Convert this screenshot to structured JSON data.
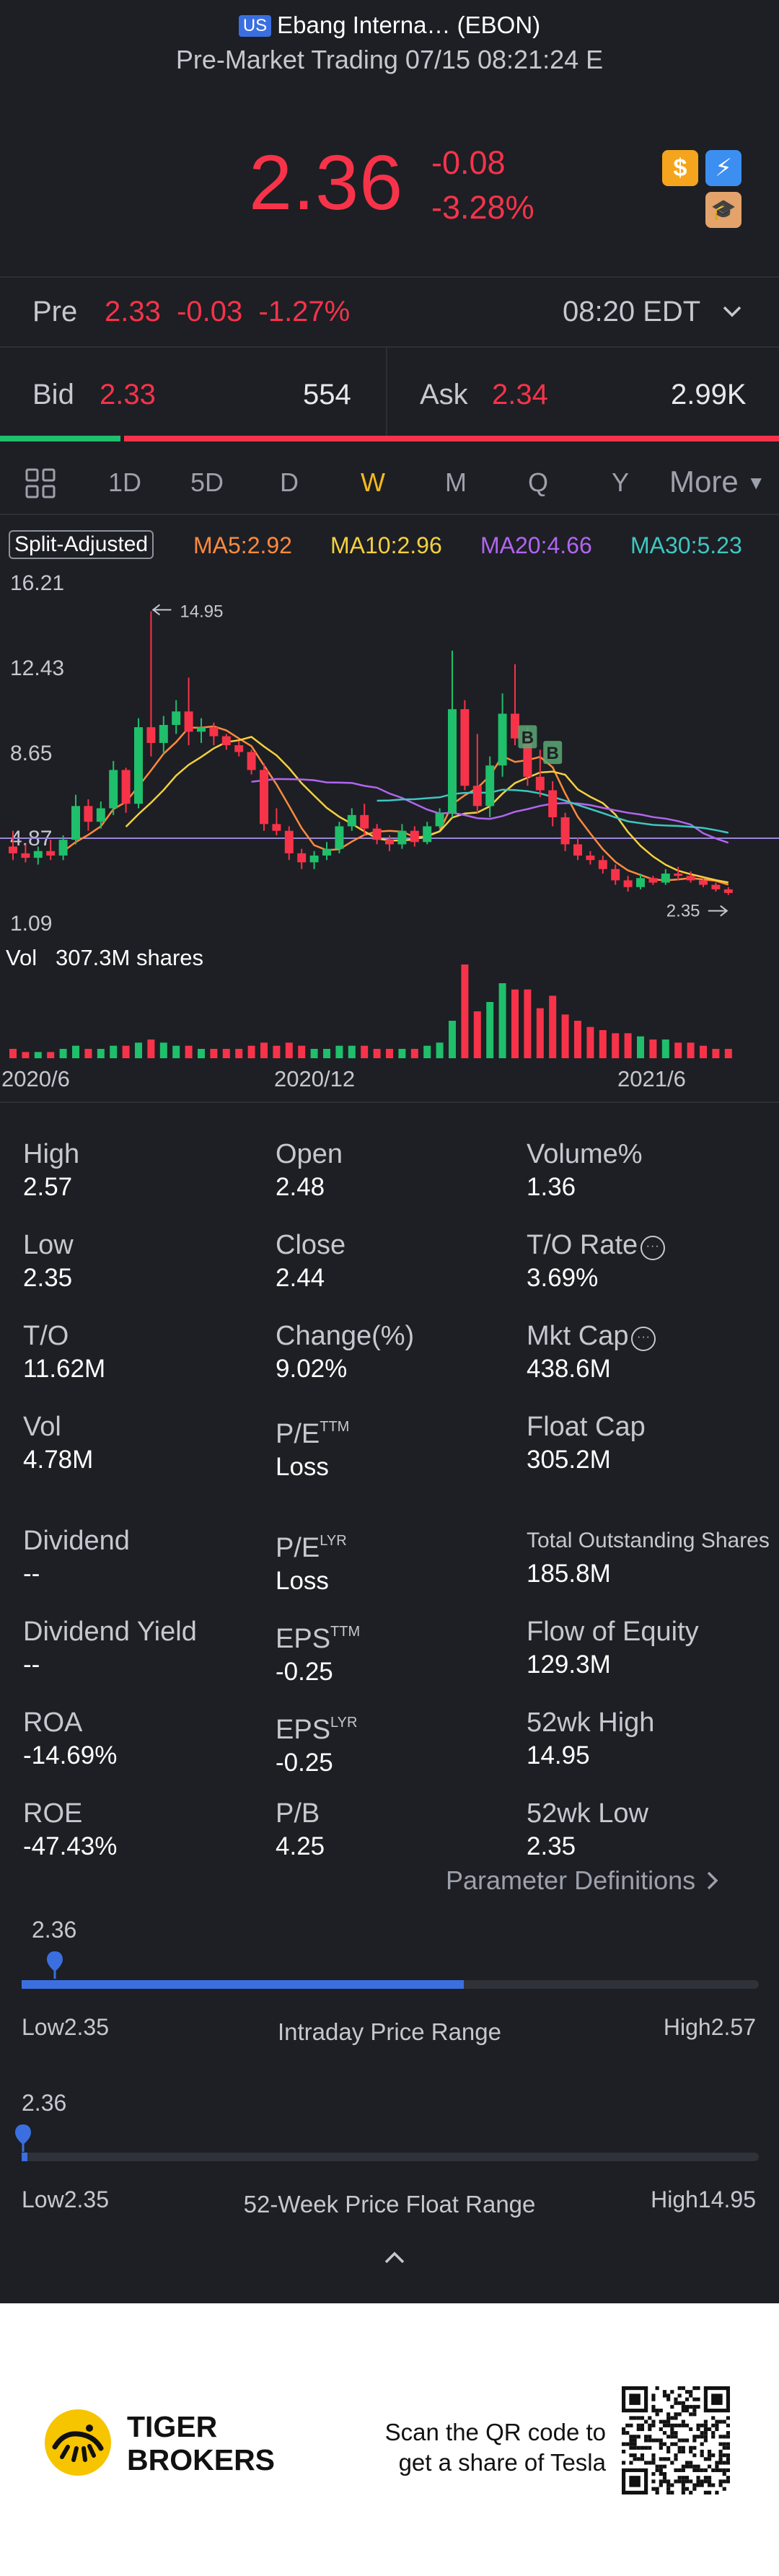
{
  "header": {
    "market_badge": "US",
    "title": "Ebang Interna… (EBON)",
    "subtitle": "Pre-Market Trading 07/15 08:21:24 E"
  },
  "quote": {
    "price": "2.36",
    "change": "-0.08",
    "change_pct": "-3.28%",
    "icons": [
      "dollar-icon",
      "flash-icon",
      "education-icon"
    ]
  },
  "premarket": {
    "label": "Pre",
    "price": "2.33",
    "change": "-0.03",
    "change_pct": "-1.27%",
    "time": "08:20 EDT"
  },
  "orderbook": {
    "bid_label": "Bid",
    "bid_price": "2.33",
    "bid_size": "554",
    "ask_label": "Ask",
    "ask_price": "2.34",
    "ask_size": "2.99K",
    "bid_ratio": 0.155
  },
  "tabs": [
    {
      "label": "1D",
      "active": false
    },
    {
      "label": "5D",
      "active": false
    },
    {
      "label": "D",
      "active": false
    },
    {
      "label": "W",
      "active": true
    },
    {
      "label": "M",
      "active": false
    },
    {
      "label": "Q",
      "active": false
    },
    {
      "label": "Y",
      "active": false
    }
  ],
  "tab_more": "More",
  "ma": {
    "split_label": "Split-Adjusted",
    "ma5": "MA5:2.92",
    "ma10": "MA10:2.96",
    "ma20": "MA20:4.66",
    "ma30": "MA30:5.23",
    "colors": {
      "ma5": "#ff8a3d",
      "ma10": "#f4d03f",
      "ma20": "#b265f0",
      "ma30": "#3fc6c1"
    }
  },
  "chart_data": {
    "type": "candlestick",
    "interval": "weekly",
    "y_ticks": [
      "16.21",
      "12.43",
      "8.65",
      "4.87",
      "1.09"
    ],
    "ylim": [
      1.09,
      16.21
    ],
    "x_ticks": [
      "2020/6",
      "2020/12",
      "2021/6"
    ],
    "max_label": "14.95",
    "min_label": "2.35",
    "reference_line": 4.87,
    "candles": [
      {
        "o": 4.5,
        "h": 5.2,
        "l": 3.9,
        "c": 4.2
      },
      {
        "o": 4.2,
        "h": 4.6,
        "l": 3.8,
        "c": 4.0
      },
      {
        "o": 4.0,
        "h": 4.5,
        "l": 3.7,
        "c": 4.3
      },
      {
        "o": 4.3,
        "h": 4.8,
        "l": 3.9,
        "c": 4.1
      },
      {
        "o": 4.1,
        "h": 5.0,
        "l": 3.9,
        "c": 4.8
      },
      {
        "o": 4.8,
        "h": 6.8,
        "l": 4.6,
        "c": 6.3
      },
      {
        "o": 6.3,
        "h": 6.6,
        "l": 5.2,
        "c": 5.6
      },
      {
        "o": 5.6,
        "h": 6.5,
        "l": 5.3,
        "c": 6.2
      },
      {
        "o": 6.2,
        "h": 8.3,
        "l": 5.9,
        "c": 7.9
      },
      {
        "o": 7.9,
        "h": 8.0,
        "l": 6.0,
        "c": 6.4
      },
      {
        "o": 6.4,
        "h": 10.2,
        "l": 6.2,
        "c": 9.8
      },
      {
        "o": 9.8,
        "h": 14.95,
        "l": 8.5,
        "c": 9.1
      },
      {
        "o": 9.1,
        "h": 10.3,
        "l": 8.6,
        "c": 9.9
      },
      {
        "o": 9.9,
        "h": 11.0,
        "l": 9.5,
        "c": 10.5
      },
      {
        "o": 10.5,
        "h": 12.0,
        "l": 9.0,
        "c": 9.6
      },
      {
        "o": 9.6,
        "h": 10.2,
        "l": 9.1,
        "c": 9.8
      },
      {
        "o": 9.8,
        "h": 10.0,
        "l": 9.0,
        "c": 9.4
      },
      {
        "o": 9.4,
        "h": 9.5,
        "l": 8.8,
        "c": 9.0
      },
      {
        "o": 9.0,
        "h": 9.2,
        "l": 8.5,
        "c": 8.7
      },
      {
        "o": 8.7,
        "h": 8.8,
        "l": 7.7,
        "c": 7.9
      },
      {
        "o": 7.9,
        "h": 8.2,
        "l": 5.2,
        "c": 5.5
      },
      {
        "o": 5.5,
        "h": 6.2,
        "l": 5.0,
        "c": 5.2
      },
      {
        "o": 5.2,
        "h": 5.4,
        "l": 3.9,
        "c": 4.2
      },
      {
        "o": 4.2,
        "h": 4.4,
        "l": 3.5,
        "c": 3.8
      },
      {
        "o": 3.8,
        "h": 4.3,
        "l": 3.5,
        "c": 4.1
      },
      {
        "o": 4.1,
        "h": 4.7,
        "l": 3.9,
        "c": 4.4
      },
      {
        "o": 4.4,
        "h": 5.6,
        "l": 4.2,
        "c": 5.4
      },
      {
        "o": 5.4,
        "h": 6.2,
        "l": 5.2,
        "c": 5.9
      },
      {
        "o": 5.9,
        "h": 6.4,
        "l": 5.0,
        "c": 5.3
      },
      {
        "o": 5.3,
        "h": 5.5,
        "l": 4.6,
        "c": 4.8
      },
      {
        "o": 4.8,
        "h": 5.0,
        "l": 4.3,
        "c": 4.6
      },
      {
        "o": 4.6,
        "h": 5.5,
        "l": 4.4,
        "c": 5.2
      },
      {
        "o": 5.2,
        "h": 5.4,
        "l": 4.5,
        "c": 4.7
      },
      {
        "o": 4.7,
        "h": 5.6,
        "l": 4.6,
        "c": 5.4
      },
      {
        "o": 5.4,
        "h": 6.2,
        "l": 5.3,
        "c": 6.0
      },
      {
        "o": 6.0,
        "h": 13.2,
        "l": 5.8,
        "c": 10.6
      },
      {
        "o": 10.6,
        "h": 11.0,
        "l": 7.0,
        "c": 7.2
      },
      {
        "o": 7.2,
        "h": 9.5,
        "l": 6.0,
        "c": 6.3
      },
      {
        "o": 6.3,
        "h": 8.5,
        "l": 5.8,
        "c": 8.1
      },
      {
        "o": 8.1,
        "h": 11.3,
        "l": 7.6,
        "c": 10.4
      },
      {
        "o": 10.4,
        "h": 12.6,
        "l": 9.0,
        "c": 9.3
      },
      {
        "o": 9.3,
        "h": 9.8,
        "l": 7.2,
        "c": 7.6
      },
      {
        "o": 7.6,
        "h": 8.8,
        "l": 6.7,
        "c": 7.0
      },
      {
        "o": 7.0,
        "h": 7.4,
        "l": 5.4,
        "c": 5.8
      },
      {
        "o": 5.8,
        "h": 6.0,
        "l": 4.3,
        "c": 4.6
      },
      {
        "o": 4.6,
        "h": 4.9,
        "l": 3.9,
        "c": 4.1
      },
      {
        "o": 4.1,
        "h": 4.3,
        "l": 3.7,
        "c": 3.9
      },
      {
        "o": 3.9,
        "h": 4.1,
        "l": 3.3,
        "c": 3.5
      },
      {
        "o": 3.5,
        "h": 3.7,
        "l": 2.8,
        "c": 3.0
      },
      {
        "o": 3.0,
        "h": 3.2,
        "l": 2.5,
        "c": 2.7
      },
      {
        "o": 2.7,
        "h": 3.3,
        "l": 2.6,
        "c": 3.1
      },
      {
        "o": 3.1,
        "h": 3.2,
        "l": 2.8,
        "c": 2.9
      },
      {
        "o": 2.9,
        "h": 3.5,
        "l": 2.8,
        "c": 3.3
      },
      {
        "o": 3.3,
        "h": 3.6,
        "l": 3.0,
        "c": 3.2
      },
      {
        "o": 3.2,
        "h": 3.4,
        "l": 2.9,
        "c": 3.0
      },
      {
        "o": 3.0,
        "h": 3.1,
        "l": 2.7,
        "c": 2.8
      },
      {
        "o": 2.8,
        "h": 2.9,
        "l": 2.5,
        "c": 2.6
      },
      {
        "o": 2.6,
        "h": 2.7,
        "l": 2.35,
        "c": 2.44
      }
    ],
    "markers": [
      {
        "label": "B",
        "index": 41,
        "price": 8.8
      },
      {
        "label": "B",
        "index": 43,
        "price": 8.1
      }
    ],
    "volume": {
      "label": "Vol",
      "value": "307.3M shares",
      "bars": [
        3,
        2,
        2,
        2,
        3,
        4,
        3,
        3,
        4,
        4,
        5,
        6,
        5,
        4,
        4,
        3,
        3,
        3,
        3,
        4,
        5,
        4,
        5,
        4,
        3,
        3,
        4,
        4,
        4,
        3,
        3,
        3,
        3,
        4,
        5,
        12,
        30,
        15,
        18,
        24,
        22,
        22,
        16,
        20,
        14,
        12,
        10,
        9,
        8,
        8,
        7,
        6,
        6,
        5,
        5,
        4,
        3,
        3
      ],
      "max_ref": 30
    }
  },
  "stats": [
    {
      "label": "High",
      "value": "2.57"
    },
    {
      "label": "Open",
      "value": "2.48"
    },
    {
      "label": "Volume%",
      "value": "1.36"
    },
    {
      "label": "Low",
      "value": "2.35"
    },
    {
      "label": "Close",
      "value": "2.44"
    },
    {
      "label": "T/O Rate",
      "value": "3.69%"
    },
    {
      "label": "T/O",
      "value": "11.62M"
    },
    {
      "label": "Change(%)",
      "value": "9.02%"
    },
    {
      "label": "Mkt Cap",
      "value": "438.6M"
    },
    {
      "label": "Vol",
      "value": "4.78M"
    },
    {
      "label": "P/E",
      "sup": "TTM",
      "value": "Loss"
    },
    {
      "label": "Float Cap",
      "value": "305.2M"
    },
    {
      "label": "Dividend",
      "value": "--"
    },
    {
      "label": "P/E",
      "sup": "LYR",
      "value": "Loss"
    },
    {
      "label": "Total Outstanding Shares",
      "value": "185.8M"
    },
    {
      "label": "Dividend Yield",
      "value": "--"
    },
    {
      "label": "EPS",
      "sup": "TTM",
      "value": "-0.25"
    },
    {
      "label": "Flow of Equity",
      "value": "129.3M"
    },
    {
      "label": "ROA",
      "value": "-14.69%"
    },
    {
      "label": "EPS",
      "sup": "LYR",
      "value": "-0.25"
    },
    {
      "label": "52wk High",
      "value": "14.95"
    },
    {
      "label": "ROE",
      "value": "-47.43%"
    },
    {
      "label": "P/B",
      "value": "4.25"
    },
    {
      "label": "52wk Low",
      "value": "2.35"
    }
  ],
  "param_definitions": "Parameter Definitions",
  "intraday_range": {
    "current": "2.36",
    "low_label": "Low2.35",
    "high_label": "High2.57",
    "title": "Intraday Price Range",
    "fill_fraction": 0.6,
    "marker_fraction": 0.045
  },
  "week52_range": {
    "current": "2.36",
    "low_label": "Low2.35",
    "high_label": "High14.95",
    "title": "52-Week Price Float Range",
    "fill_fraction": 0.008,
    "marker_fraction": 0.002
  },
  "footer": {
    "brand_line1": "TIGER",
    "brand_line2": "BROKERS",
    "qr_line1": "Scan the QR code to",
    "qr_line2": "get a share of Tesla"
  },
  "colors": {
    "up": "#1fbf6b",
    "down": "#f7334a",
    "accent": "#3b6fe0",
    "tab_active": "#f4b91d",
    "background": "#1d1f24"
  }
}
